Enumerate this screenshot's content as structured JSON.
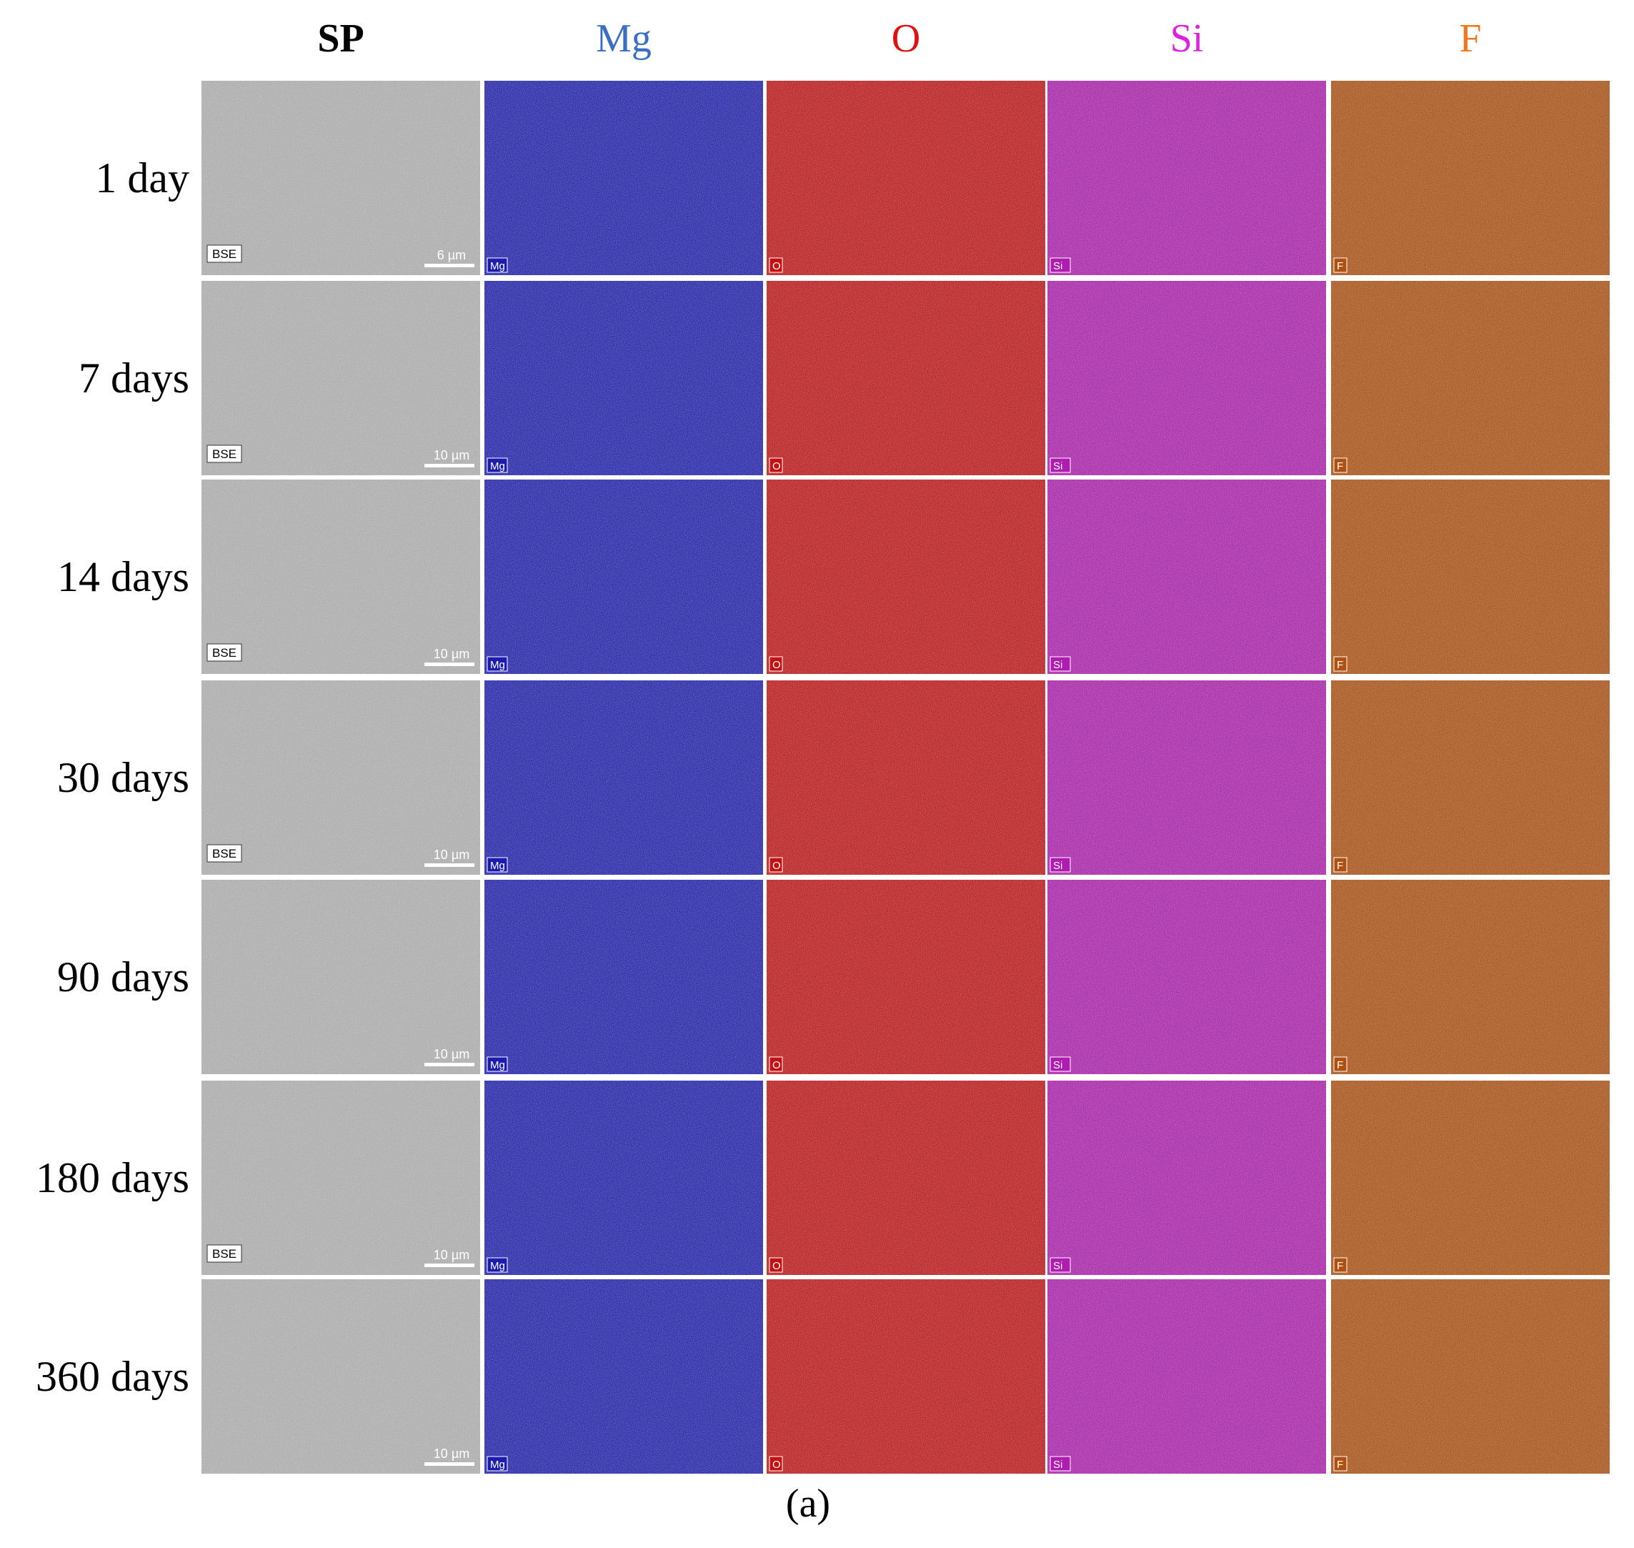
{
  "figure": {
    "columns": [
      {
        "label": "SP",
        "color": "#000000",
        "tile_color": "#b4b4b4"
      },
      {
        "label": "Mg",
        "color": "#3a6fc4",
        "tile_color": "#1c1cb0"
      },
      {
        "label": "O",
        "color": "#e01010",
        "tile_color": "#c41212"
      },
      {
        "label": "Si",
        "color": "#e020e0",
        "tile_color": "#b01cb0"
      },
      {
        "label": "F",
        "color": "#f07820",
        "tile_color": "#b0500e"
      }
    ],
    "rows": [
      {
        "label": "1 day",
        "detector": "BSE",
        "scale_bar": "6 µm"
      },
      {
        "label": "7 days",
        "detector": "BSE",
        "scale_bar": "10 µm"
      },
      {
        "label": "14 days",
        "detector": "BSE",
        "scale_bar": "10 µm"
      },
      {
        "label": "30 days",
        "detector": "BSE",
        "scale_bar": "10 µm"
      },
      {
        "label": "90 days",
        "scale_bar": "10 µm"
      },
      {
        "label": "180 days",
        "detector": "BSE",
        "scale_bar": "10 µm"
      },
      {
        "label": "360 days",
        "scale_bar": "10 µm"
      }
    ],
    "caption": "(a)"
  }
}
